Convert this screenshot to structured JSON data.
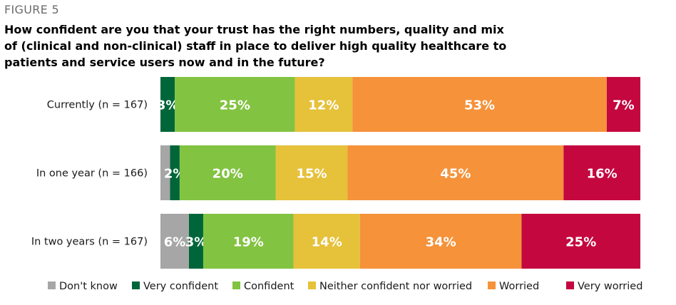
{
  "figure_label": "FIGURE 5",
  "chart_data": {
    "type": "bar",
    "orientation": "horizontal",
    "stacked": true,
    "title": "How confident are you that your trust has the right numbers, quality and mix of (clinical and non-clinical) staff in place to deliver high quality healthcare to patients and service users now and in the future?",
    "categories": [
      "Currently (n = 167)",
      "In one year (n = 166)",
      "In two years (n = 167)"
    ],
    "series": [
      {
        "name": "Don't know",
        "color": "#a6a6a6",
        "values": [
          0,
          2,
          6
        ],
        "labels": [
          "",
          "",
          "6%"
        ]
      },
      {
        "name": "Very confident",
        "color": "#00663a",
        "values": [
          3,
          2,
          3
        ],
        "labels": [
          "3%",
          "2%",
          "3%"
        ]
      },
      {
        "name": "Confident",
        "color": "#82c341",
        "values": [
          25,
          20,
          19
        ],
        "labels": [
          "25%",
          "20%",
          "19%"
        ]
      },
      {
        "name": "Neither confident nor worried",
        "color": "#e6c13a",
        "values": [
          12,
          15,
          14
        ],
        "labels": [
          "12%",
          "15%",
          "14%"
        ]
      },
      {
        "name": "Worried",
        "color": "#f5923a",
        "values": [
          53,
          45,
          34
        ],
        "labels": [
          "53%",
          "45%",
          "34%"
        ]
      },
      {
        "name": "Very worried",
        "color": "#c4073f",
        "values": [
          7,
          16,
          25
        ],
        "labels": [
          "7%",
          "16%",
          "25%"
        ]
      }
    ],
    "legend_position": "bottom",
    "grid": false
  }
}
